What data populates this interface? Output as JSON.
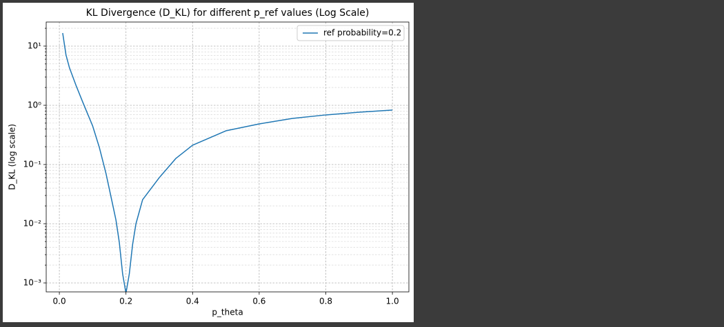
{
  "chart_data": {
    "type": "line",
    "title": "KL Divergence (D_KL) for different p_ref values (Log Scale)",
    "xlabel": "p_theta",
    "ylabel": "D_KL (log scale)",
    "x": [
      0.01,
      0.02,
      0.03,
      0.05,
      0.07,
      0.1,
      0.12,
      0.14,
      0.16,
      0.17,
      0.18,
      0.19,
      0.2,
      0.21,
      0.22,
      0.23,
      0.25,
      0.3,
      0.35,
      0.4,
      0.5,
      0.6,
      0.7,
      0.8,
      0.9,
      1.0
    ],
    "series": [
      {
        "name": "ref probability=0.2",
        "color": "#1f77b4",
        "values": [
          16.6,
          7.06,
          4.36,
          2.17,
          1.14,
          0.448,
          0.195,
          0.0706,
          0.0212,
          0.0115,
          0.00485,
          0.00142,
          0,
          0.00142,
          0.00448,
          0.01,
          0.0255,
          0.06,
          0.127,
          0.212,
          0.371,
          0.485,
          0.601,
          0.688,
          0.765,
          0.83
        ]
      }
    ],
    "xlim": [
      -0.0395,
      1.0495
    ],
    "ylim": [
      0.000706,
      25.5
    ],
    "xticks": [
      {
        "value": 0,
        "label": "0.0"
      },
      0.2,
      0.4,
      0.6,
      0.8,
      {
        "value": 1,
        "label": "1.0"
      }
    ],
    "yticks": [
      {
        "value": 0.001,
        "label": "10⁻³"
      },
      {
        "value": 0.01,
        "label": "10⁻²"
      },
      {
        "value": 0.1,
        "label": "10⁻¹"
      },
      {
        "value": 1,
        "label": "10⁰"
      },
      {
        "value": 10,
        "label": "10¹"
      }
    ],
    "yscale": "log",
    "grid": true,
    "minor_grid": true,
    "legend": "upper right"
  }
}
